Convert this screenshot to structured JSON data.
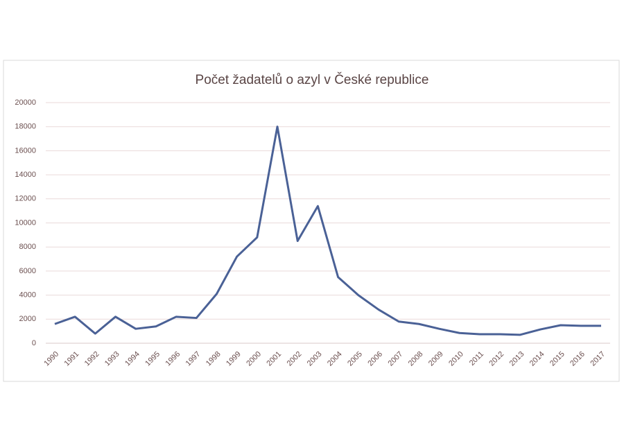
{
  "chart_data": {
    "type": "line",
    "title": "Počet žadatelů o azyl v České republice",
    "categories": [
      "1990",
      "1991",
      "1992",
      "1993",
      "1994",
      "1995",
      "1996",
      "1997",
      "1998",
      "1999",
      "2000",
      "2001",
      "2002",
      "2003",
      "2004",
      "2005",
      "2006",
      "2007",
      "2008",
      "2009",
      "2010",
      "2011",
      "2012",
      "2013",
      "2014",
      "2015",
      "2016",
      "2017"
    ],
    "series": [
      {
        "name": "Počet žadatelů",
        "color": "#4a6196",
        "values": [
          1600,
          2200,
          800,
          2200,
          1200,
          1400,
          2200,
          2100,
          4100,
          7200,
          8800,
          18000,
          8500,
          11400,
          5500,
          4000,
          2800,
          1800,
          1600,
          1200,
          850,
          750,
          750,
          700,
          1150,
          1500,
          1450,
          1450
        ]
      }
    ],
    "ylim": [
      0,
      20000
    ],
    "yticks": [
      0,
      2000,
      4000,
      6000,
      8000,
      10000,
      12000,
      14000,
      16000,
      18000,
      20000
    ],
    "grid": true
  }
}
